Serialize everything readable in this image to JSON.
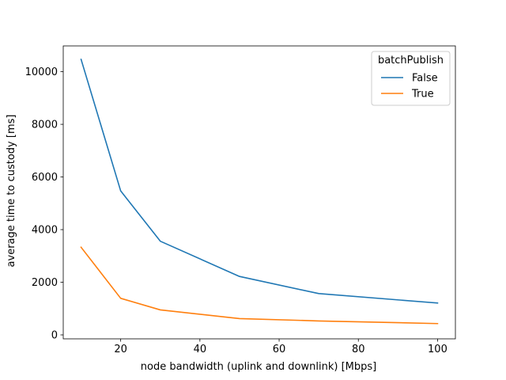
{
  "chart_data": {
    "type": "line",
    "title": "",
    "xlabel": "node bandwidth (uplink and downlink) [Mbps]",
    "ylabel": "average time to custody [ms]",
    "xlim": [
      5.5,
      104.5
    ],
    "ylim": [
      -150,
      10980
    ],
    "xticks": [
      20,
      40,
      60,
      80,
      100
    ],
    "yticks": [
      0,
      2000,
      4000,
      6000,
      8000,
      10000
    ],
    "grid": false,
    "legend": {
      "title": "batchPublish",
      "placement": "top-right"
    },
    "x": [
      10,
      20,
      30,
      50,
      70,
      100
    ],
    "series": [
      {
        "name": "False",
        "color": "#1f77b4",
        "values": [
          10470,
          5470,
          3560,
          2220,
          1570,
          1210
        ]
      },
      {
        "name": "True",
        "color": "#ff7f0e",
        "values": [
          3330,
          1390,
          950,
          620,
          530,
          430
        ]
      }
    ]
  }
}
